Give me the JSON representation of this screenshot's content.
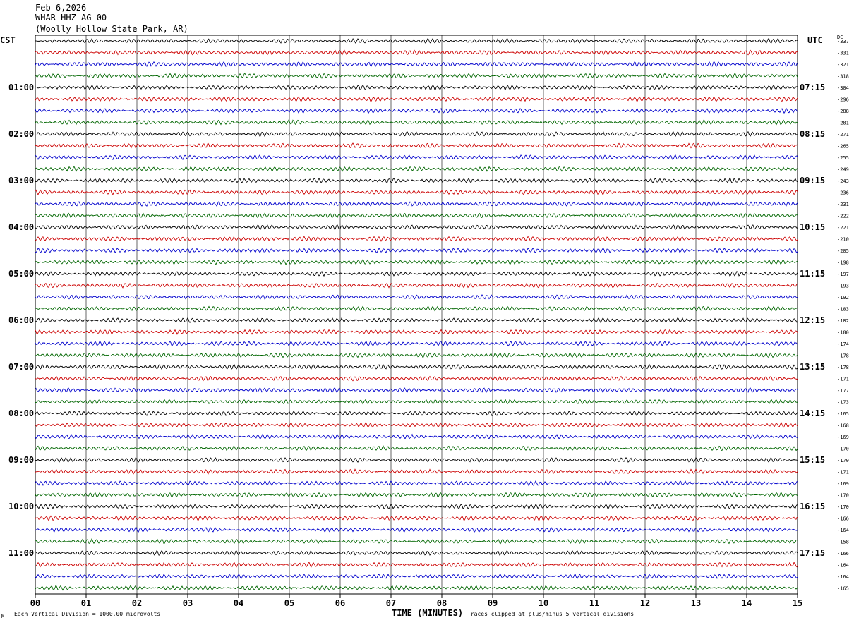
{
  "header": {
    "date": "Feb 6,2026",
    "station": "WHAR HHZ AG 00",
    "location": "(Woolly Hollow State Park, AR)"
  },
  "left_zone": "CST",
  "right_zone": "UTC",
  "dc_label": "DC",
  "corner_mark": "M",
  "footer": {
    "left": "Each Vertical Division = 1000.00 microvolts",
    "center": "TIME (MINUTES)",
    "right": "Traces clipped at plus/minus 5 vertical divisions"
  },
  "colors": {
    "trace_cycle": [
      "#000000",
      "#cc0000",
      "#0000cc",
      "#006600"
    ],
    "grid": "#000000"
  },
  "chart_data": {
    "type": "line",
    "xlabel": "TIME (MINUTES)",
    "xlim": [
      0,
      15
    ],
    "x_ticks": [
      "00",
      "01",
      "02",
      "03",
      "04",
      "05",
      "06",
      "07",
      "08",
      "09",
      "10",
      "11",
      "12",
      "13",
      "14",
      "15"
    ],
    "rows": 48,
    "left_hour_labels": [
      "01:00",
      "02:00",
      "03:00",
      "04:00",
      "05:00",
      "06:00",
      "07:00",
      "08:00",
      "09:00",
      "10:00",
      "11:00"
    ],
    "right_hour_labels": [
      "07:15",
      "08:15",
      "09:15",
      "10:15",
      "11:15",
      "12:15",
      "13:15",
      "14:15",
      "15:15",
      "16:15",
      "17:15"
    ],
    "dc_offsets": [
      "-337",
      "-331",
      "-321",
      "-318",
      "-304",
      "-296",
      "-288",
      "-281",
      "-271",
      "-265",
      "-255",
      "-249",
      "-243",
      "-236",
      "-231",
      "-222",
      "-221",
      "-210",
      "-205",
      "-198",
      "-197",
      "-193",
      "-192",
      "-183",
      "-182",
      "-180",
      "-174",
      "-178",
      "-178",
      "-171",
      "-177",
      "-173",
      "-165",
      "-168",
      "-169",
      "-170",
      "-170",
      "-171",
      "-169",
      "-170",
      "-170",
      "-166",
      "-164",
      "-158",
      "-166",
      "-164",
      "-164",
      "-165"
    ]
  }
}
